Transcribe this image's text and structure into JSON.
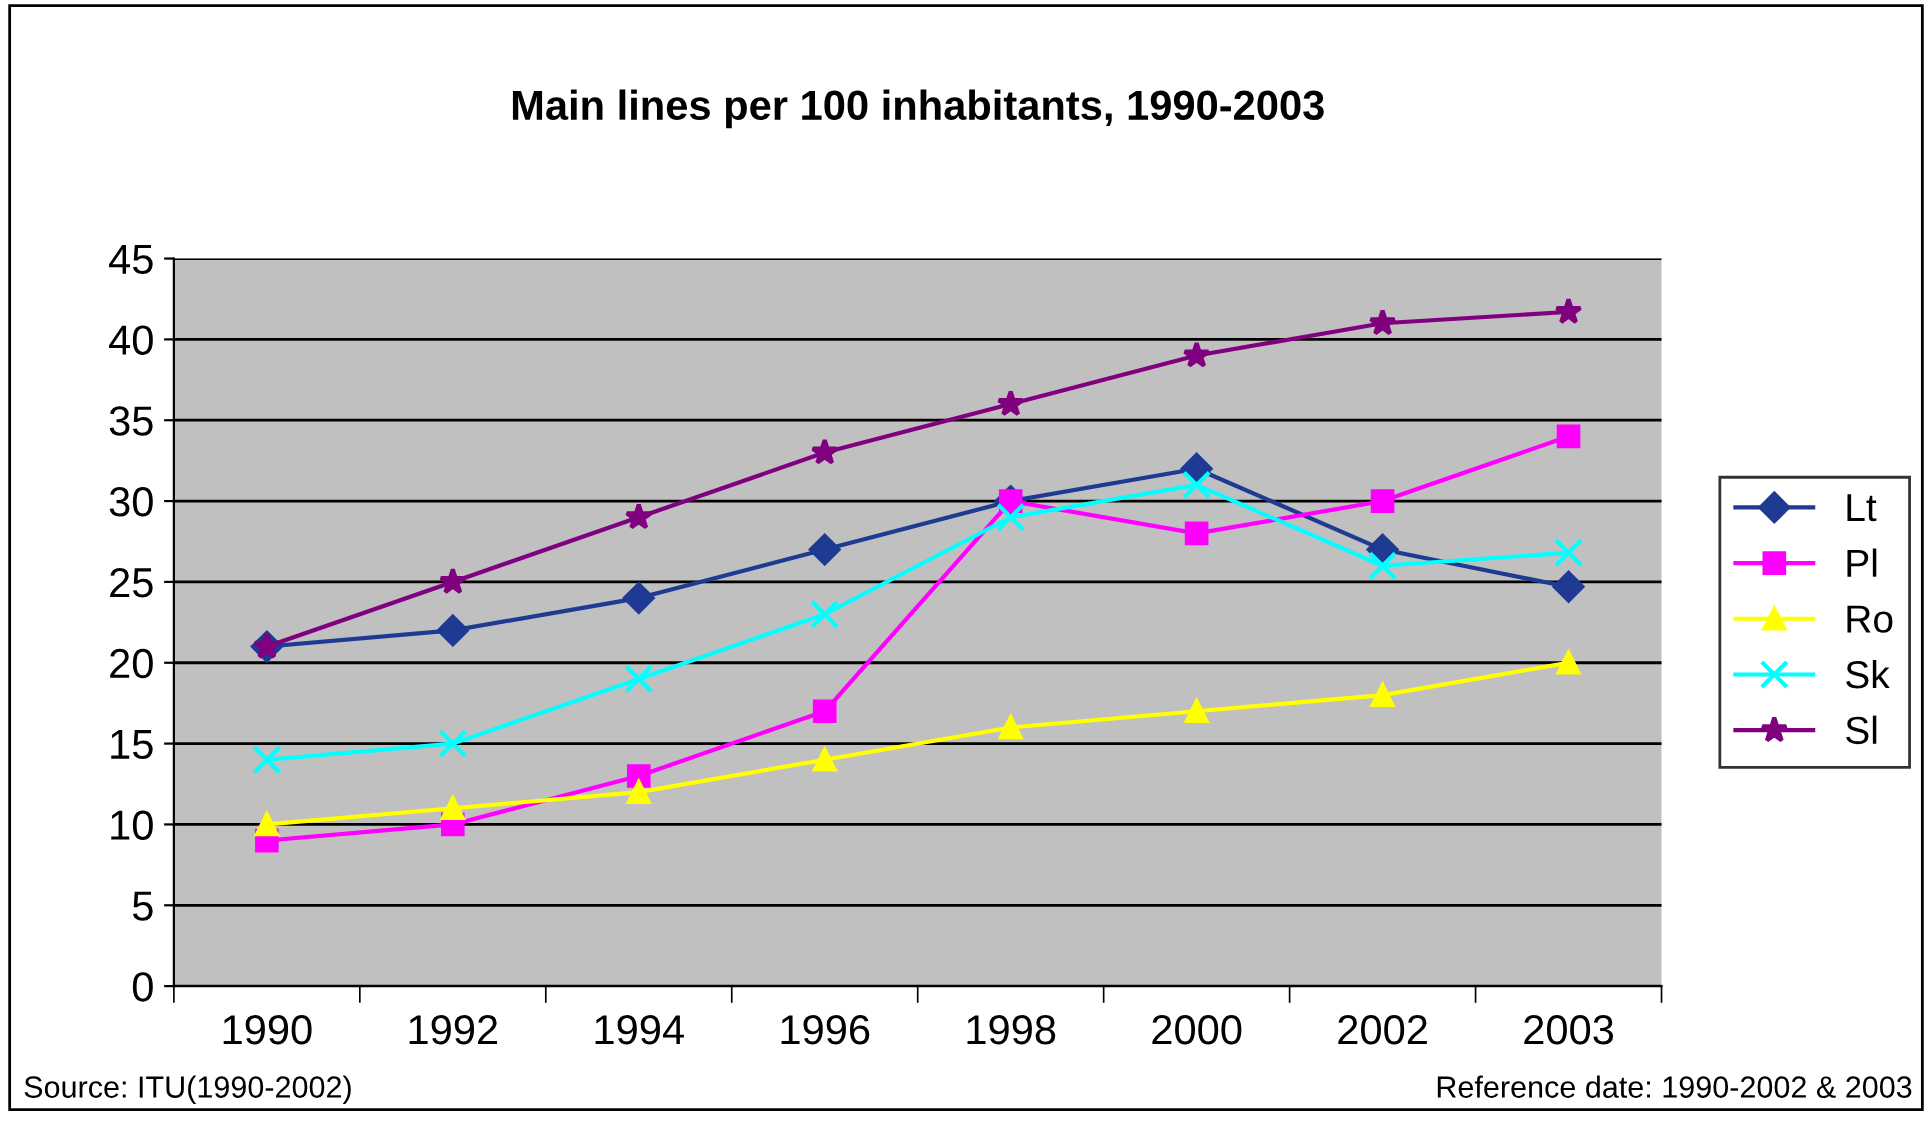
{
  "chart_data": {
    "type": "line",
    "title": "Main lines per 100 inhabitants, 1990-2003",
    "categories": [
      "1990",
      "1992",
      "1994",
      "1996",
      "1998",
      "2000",
      "2002",
      "2003"
    ],
    "series": [
      {
        "name": "Lt",
        "color": "#1f3a93",
        "marker": "diamond",
        "values": [
          21,
          22,
          24,
          27,
          30,
          32,
          27,
          24.7
        ]
      },
      {
        "name": "Pl",
        "color": "#ff00ff",
        "marker": "square",
        "values": [
          9,
          10,
          13,
          17,
          30,
          28,
          30,
          34
        ]
      },
      {
        "name": "Ro",
        "color": "#ffff00",
        "marker": "triangle",
        "values": [
          10,
          11,
          12,
          14,
          16,
          17,
          18,
          20
        ]
      },
      {
        "name": "Sk",
        "color": "#00ffff",
        "marker": "cross",
        "values": [
          14,
          15,
          19,
          23,
          29,
          31,
          26,
          26.8
        ]
      },
      {
        "name": "Sl",
        "color": "#800080",
        "marker": "star",
        "values": [
          21,
          25,
          29,
          33,
          36,
          39,
          41,
          41.7
        ]
      }
    ],
    "ylim": [
      0,
      45
    ],
    "yticks": [
      0,
      5,
      10,
      15,
      20,
      25,
      30,
      35,
      40,
      45
    ],
    "grid": "y",
    "legend": "right",
    "annotations": [
      "Source: ITU(1990-2002)",
      "Reference date: 1990-2002 & 2003"
    ]
  }
}
